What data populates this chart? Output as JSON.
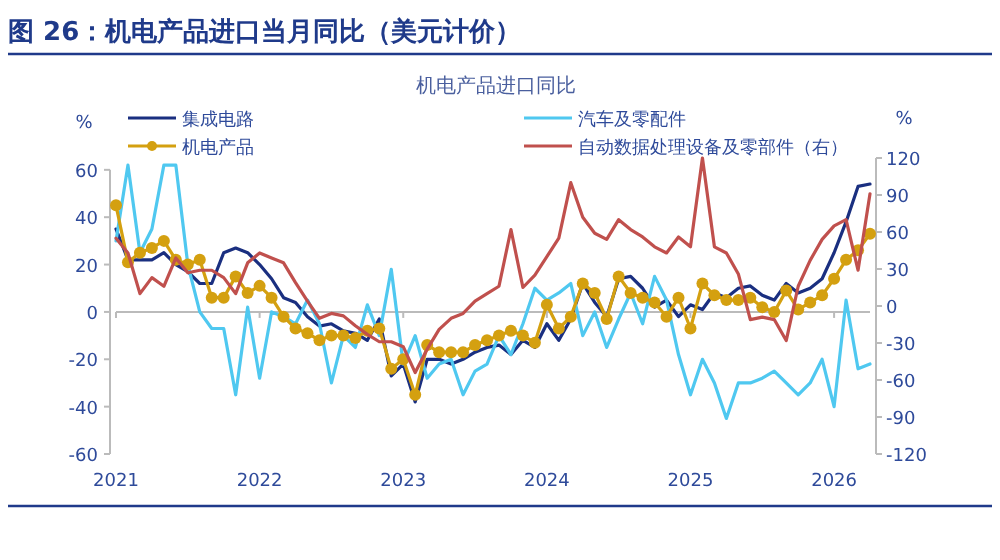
{
  "chart_data": {
    "type": "line",
    "title": "图 26：机电产品进口当月同比（美元计价）",
    "subtitle": "机电产品进口同比",
    "ylabel": "%",
    "y2label": "%",
    "x": [
      "2021-01",
      "2021-02",
      "2021-03",
      "2021-04",
      "2021-05",
      "2021-06",
      "2021-07",
      "2021-08",
      "2021-09",
      "2021-10",
      "2021-11",
      "2021-12",
      "2022-01",
      "2022-02",
      "2022-03",
      "2022-04",
      "2022-05",
      "2022-06",
      "2022-07",
      "2022-08",
      "2022-09",
      "2022-10",
      "2022-11",
      "2022-12",
      "2023-01",
      "2023-02",
      "2023-03",
      "2023-04",
      "2023-05",
      "2023-06",
      "2023-07",
      "2023-08",
      "2023-09",
      "2023-10",
      "2023-11",
      "2023-12",
      "2024-01",
      "2024-02",
      "2024-03",
      "2024-04",
      "2024-05",
      "2024-06",
      "2024-07",
      "2024-08",
      "2024-09",
      "2024-10",
      "2024-11",
      "2024-12",
      "2025-01",
      "2025-02",
      "2025-03",
      "2025-04",
      "2025-05",
      "2025-06",
      "2025-07",
      "2025-08",
      "2025-09",
      "2025-10",
      "2025-11",
      "2025-12",
      "2026-01",
      "2026-02",
      "2026-03",
      "2026-04"
    ],
    "xlim": [
      "2021-01",
      "2026-04"
    ],
    "xticks": [
      {
        "value": "2021-01",
        "label": "2021"
      },
      {
        "value": "2022-01",
        "label": "2022"
      },
      {
        "value": "2023-01",
        "label": "2023"
      },
      {
        "value": "2024-01",
        "label": "2024"
      },
      {
        "value": "2025-01",
        "label": "2025"
      },
      {
        "value": "2026-01",
        "label": "2026"
      }
    ],
    "ylim": [
      -60,
      65
    ],
    "yticks": [
      -60,
      -40,
      -20,
      0,
      20,
      40,
      60
    ],
    "y2lim": [
      -120,
      120
    ],
    "y2ticks": [
      -120,
      -90,
      -60,
      -30,
      0,
      30,
      60,
      90,
      120
    ],
    "legend": "top",
    "marker": "none",
    "line_style": "solid",
    "series": [
      {
        "name": "集成电路",
        "color": "#1a2f80",
        "values": [
          35,
          22,
          22,
          22,
          25,
          20,
          17,
          12,
          12,
          25,
          27,
          25,
          20,
          14,
          6,
          4,
          -2,
          -6,
          -5,
          -8,
          -9,
          -12,
          -3,
          -27,
          -22,
          -38,
          -20,
          -20,
          -22,
          -20,
          -17,
          -15,
          -14,
          -18,
          -12,
          -15,
          -5,
          -12,
          -3,
          12,
          4,
          -2,
          14,
          15,
          10,
          2,
          5,
          -2,
          3,
          1,
          8,
          6,
          10,
          11,
          7,
          5,
          12,
          8,
          10,
          14,
          25,
          38,
          53,
          54
        ]
      },
      {
        "name": "汽车及零配件",
        "color": "#4fc8f0",
        "values": [
          30,
          62,
          25,
          35,
          62,
          62,
          20,
          0,
          -7,
          -7,
          -35,
          2,
          -28,
          0,
          -2,
          -5,
          5,
          -5,
          -30,
          -10,
          -15,
          3,
          -10,
          18,
          -22,
          -10,
          -28,
          -22,
          -20,
          -35,
          -25,
          -22,
          -10,
          -18,
          -5,
          10,
          5,
          8,
          12,
          -10,
          0,
          -15,
          -3,
          8,
          -5,
          15,
          5,
          -18,
          -35,
          -20,
          -30,
          -45,
          -30,
          -30,
          -28,
          -25,
          -30,
          -35,
          -30,
          -20,
          -40,
          5,
          -24,
          -22
        ]
      },
      {
        "name": "机电产品",
        "color": "#d4a010",
        "marker": "circle",
        "values": [
          45,
          21,
          25,
          27,
          30,
          22,
          20,
          22,
          6,
          6,
          15,
          8,
          11,
          6,
          -2,
          -7,
          -9,
          -12,
          -10,
          -10,
          -11,
          -8,
          -7,
          -24,
          -20,
          -35,
          -14,
          -17,
          -17,
          -17,
          -14,
          -12,
          -10,
          -8,
          -10,
          -13,
          3,
          -7,
          -2,
          12,
          8,
          -3,
          15,
          8,
          6,
          4,
          -2,
          6,
          -7,
          12,
          7,
          5,
          5,
          6,
          2,
          0,
          9,
          1,
          4,
          7,
          14,
          22,
          26,
          33
        ]
      },
      {
        "name": "自动数据处理设备及零部件（右）",
        "color": "#c0504d",
        "axis": "y2",
        "values": [
          55,
          43,
          10,
          23,
          16,
          39,
          27,
          29,
          29,
          23,
          10,
          35,
          43,
          39,
          35,
          19,
          4,
          -10,
          -6,
          -8,
          -16,
          -23,
          -29,
          -29,
          -33,
          -54,
          -35,
          -19,
          -10,
          -6,
          4,
          10,
          16,
          62,
          15,
          25,
          40,
          55,
          100,
          72,
          59,
          54,
          70,
          62,
          56,
          48,
          43,
          56,
          48,
          120,
          48,
          43,
          26,
          -11,
          -9,
          -11,
          -28,
          16,
          37,
          54,
          65,
          70,
          29,
          91
        ]
      }
    ]
  }
}
